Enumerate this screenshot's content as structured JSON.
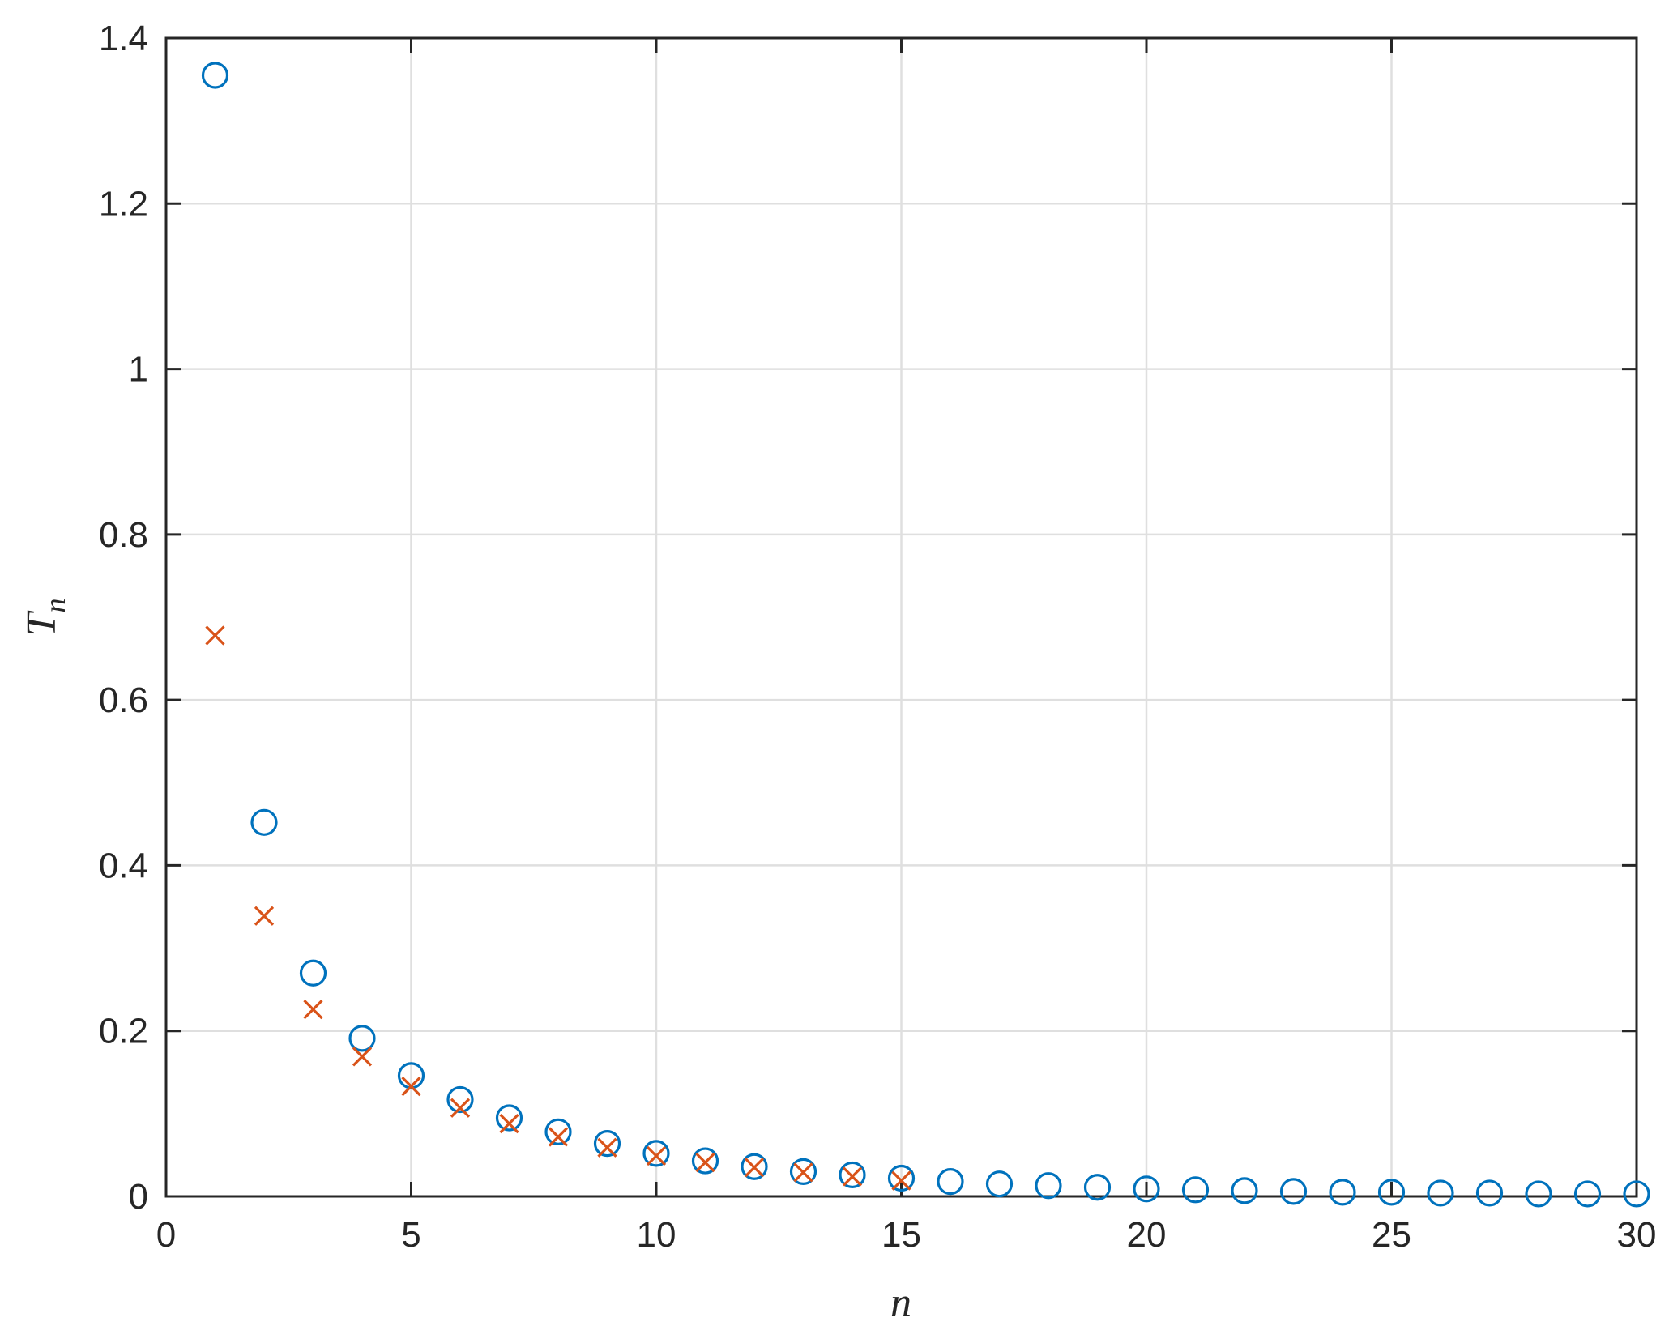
{
  "chart_data": {
    "type": "scatter",
    "title": "",
    "xlabel": "n",
    "ylabel": "T",
    "ylabel_subscript": "n",
    "xlim": [
      0,
      30
    ],
    "ylim": [
      0,
      1.4
    ],
    "xticks": [
      0,
      5,
      10,
      15,
      20,
      25,
      30
    ],
    "xtick_labels": [
      "0",
      "5",
      "10",
      "15",
      "20",
      "25",
      "30"
    ],
    "yticks": [
      0,
      0.2,
      0.4,
      0.6,
      0.8,
      1,
      1.2,
      1.4
    ],
    "ytick_labels": [
      "0",
      "0.2",
      "0.4",
      "0.6",
      "0.8",
      "1",
      "1.2",
      "1.4"
    ],
    "grid": true,
    "legend": "none",
    "series": [
      {
        "marker": "circle",
        "color": "#0072BD",
        "x": [
          1,
          2,
          3,
          4,
          5,
          6,
          7,
          8,
          9,
          10,
          11,
          12,
          13,
          14,
          15,
          16,
          17,
          18,
          19,
          20,
          21,
          22,
          23,
          24,
          25,
          26,
          27,
          28,
          29,
          30
        ],
        "y": [
          1.355,
          0.452,
          0.27,
          0.191,
          0.146,
          0.117,
          0.095,
          0.078,
          0.064,
          0.052,
          0.043,
          0.036,
          0.03,
          0.026,
          0.022,
          0.018,
          0.015,
          0.013,
          0.011,
          0.009,
          0.008,
          0.007,
          0.006,
          0.005,
          0.005,
          0.004,
          0.004,
          0.003,
          0.003,
          0.003
        ]
      },
      {
        "marker": "x",
        "color": "#D95319",
        "x": [
          1,
          2,
          3,
          4,
          5,
          6,
          7,
          8,
          9,
          10,
          11,
          12,
          13,
          14,
          15
        ],
        "y": [
          0.678,
          0.339,
          0.226,
          0.169,
          0.133,
          0.107,
          0.088,
          0.072,
          0.059,
          0.049,
          0.041,
          0.035,
          0.029,
          0.024,
          0.019
        ]
      }
    ]
  }
}
